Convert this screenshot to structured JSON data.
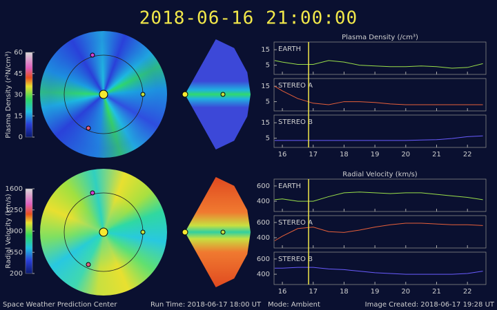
{
  "title": "2018-06-16 21:00:00",
  "colorbars": [
    {
      "label": "Plasma Density (r²N/cm³)",
      "lim": [
        0,
        60
      ],
      "ticks": [
        0,
        15,
        30,
        45,
        60
      ]
    },
    {
      "label": "Radial Velocity (km/s)",
      "lim": [
        200,
        1600
      ],
      "ticks": [
        200,
        550,
        900,
        1250,
        1600
      ]
    }
  ],
  "time_marker": 16.85,
  "chart_data": [
    {
      "type": "line",
      "title": "Plasma Density (/cm³)",
      "x": [
        15.75,
        16,
        16.5,
        17,
        17.5,
        18,
        18.5,
        19,
        19.5,
        20,
        20.5,
        21,
        21.5,
        22,
        22.5
      ],
      "series": [
        {
          "name": "EARTH",
          "color": "#9be04a",
          "values": [
            8,
            7,
            5.5,
            5.5,
            8,
            7,
            5,
            4.5,
            4,
            4,
            4.5,
            4,
            3,
            3.5,
            6
          ]
        }
      ],
      "xlim": [
        15.73,
        22.6
      ],
      "xticks": [
        16,
        17,
        18,
        19,
        20,
        21,
        22
      ],
      "ylim": [
        -1,
        20
      ],
      "yticks": [
        5,
        15
      ]
    },
    {
      "type": "line",
      "x": [
        15.75,
        16,
        16.5,
        17,
        17.5,
        18,
        18.5,
        19,
        19.5,
        20,
        20.5,
        21,
        21.5,
        22,
        22.5
      ],
      "series": [
        {
          "name": "STEREO A",
          "color": "#e8603a",
          "values": [
            15,
            12,
            7,
            4,
            3,
            5,
            5,
            4.5,
            3.5,
            3,
            3,
            3,
            3,
            3,
            3
          ]
        }
      ],
      "xlim": [
        15.73,
        22.6
      ],
      "xticks": [
        16,
        17,
        18,
        19,
        20,
        21,
        22
      ],
      "ylim": [
        -1,
        20
      ],
      "yticks": [
        5,
        15
      ]
    },
    {
      "type": "line",
      "x": [
        15.75,
        16,
        16.5,
        17,
        17.5,
        18,
        18.5,
        19,
        19.5,
        20,
        20.5,
        21,
        21.5,
        22,
        22.5
      ],
      "series": [
        {
          "name": "STEREO B",
          "color": "#6a5cff",
          "values": [
            3.5,
            3.5,
            3.5,
            3.5,
            3.5,
            3.5,
            3.5,
            3.5,
            3.5,
            3.5,
            3.8,
            4,
            4.8,
            6,
            6.5
          ]
        }
      ],
      "xlim": [
        15.73,
        22.6
      ],
      "xticks": [
        16,
        17,
        18,
        19,
        20,
        21,
        22
      ],
      "ylim": [
        -1,
        20
      ],
      "yticks": [
        5,
        15
      ]
    },
    {
      "type": "line",
      "title": "Radial Velocity (km/s)",
      "x": [
        15.75,
        16,
        16.5,
        17,
        17.5,
        18,
        18.5,
        19,
        19.5,
        20,
        20.5,
        21,
        21.5,
        22,
        22.5
      ],
      "series": [
        {
          "name": "EARTH",
          "color": "#9be04a",
          "values": [
            420,
            430,
            400,
            400,
            460,
            510,
            520,
            510,
            500,
            510,
            510,
            490,
            470,
            450,
            420
          ]
        }
      ],
      "xlim": [
        15.73,
        22.6
      ],
      "xticks": [
        16,
        17,
        18,
        19,
        20,
        21,
        22
      ],
      "ylim": [
        265,
        690
      ],
      "yticks": [
        400,
        600
      ]
    },
    {
      "type": "line",
      "x": [
        15.75,
        16,
        16.5,
        17,
        17.5,
        18,
        18.5,
        19,
        19.5,
        20,
        20.5,
        21,
        21.5,
        22,
        22.5
      ],
      "series": [
        {
          "name": "STEREO A",
          "color": "#e8603a",
          "values": [
            360,
            420,
            520,
            540,
            480,
            470,
            500,
            540,
            570,
            590,
            590,
            580,
            570,
            570,
            560
          ]
        }
      ],
      "xlim": [
        15.73,
        22.6
      ],
      "xticks": [
        16,
        17,
        18,
        19,
        20,
        21,
        22
      ],
      "ylim": [
        265,
        690
      ],
      "yticks": [
        400,
        600
      ]
    },
    {
      "type": "line",
      "x": [
        15.75,
        16,
        16.5,
        17,
        17.5,
        18,
        18.5,
        19,
        19.5,
        20,
        20.5,
        21,
        21.5,
        22,
        22.5
      ],
      "series": [
        {
          "name": "STEREO B",
          "color": "#6a5cff",
          "values": [
            480,
            480,
            490,
            490,
            470,
            460,
            440,
            420,
            410,
            400,
            400,
            400,
            400,
            410,
            440
          ]
        }
      ],
      "xlim": [
        15.73,
        22.6
      ],
      "xticks": [
        16,
        17,
        18,
        19,
        20,
        21,
        22
      ],
      "ylim": [
        265,
        690
      ],
      "yticks": [
        400,
        600
      ]
    }
  ],
  "footer": {
    "center": "Space Weather Prediction Center",
    "run_time": "Run Time: 2018-06-17 18:00 UT",
    "mode": "Mode: Ambient",
    "created": "Image Created: 2018-06-17 19:28 UT"
  }
}
